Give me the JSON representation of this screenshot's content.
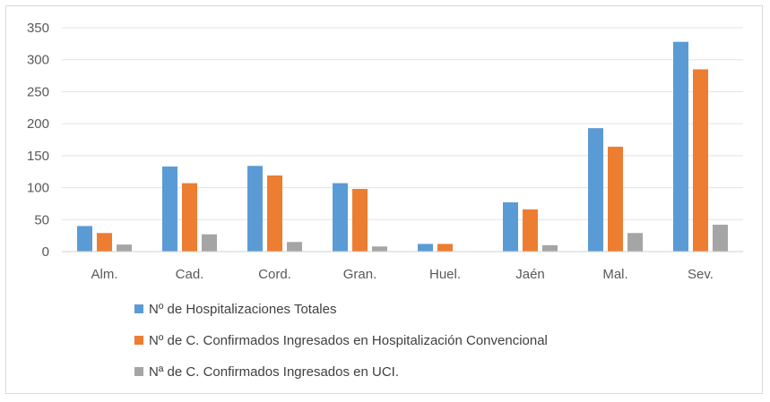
{
  "chart_data": {
    "type": "bar",
    "categories": [
      "Alm.",
      "Cad.",
      "Cord.",
      "Gran.",
      "Huel.",
      "Jaén",
      "Mal.",
      "Sev."
    ],
    "series": [
      {
        "name": "Nº de Hospitalizaciones Totales",
        "color": "#5b9bd5",
        "values": [
          40,
          133,
          134,
          107,
          12,
          77,
          193,
          328
        ]
      },
      {
        "name": "Nº de C. Confirmados Ingresados en Hospitalización Convencional",
        "color": "#ed7d31",
        "values": [
          29,
          107,
          119,
          98,
          12,
          66,
          164,
          285
        ]
      },
      {
        "name": "Nª de C. Confirmados Ingresados en UCI.",
        "color": "#a5a5a5",
        "values": [
          11,
          27,
          15,
          8,
          0,
          10,
          29,
          42
        ]
      }
    ],
    "ylim": [
      0,
      350
    ],
    "yticks": [
      0,
      50,
      100,
      150,
      200,
      250,
      300,
      350
    ],
    "title": "",
    "xlabel": "",
    "ylabel": "",
    "grid": true,
    "legend_position": "bottom-left"
  }
}
